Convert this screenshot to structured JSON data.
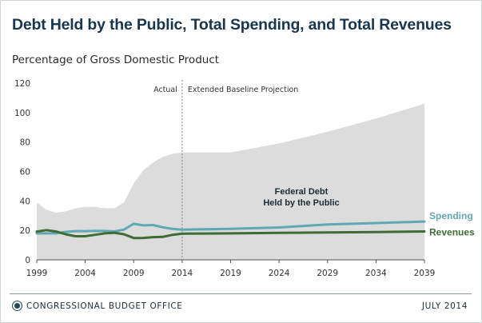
{
  "chart_data": {
    "type": "line",
    "title": "Debt Held by the Public, Total Spending, and Total Revenues",
    "subtitle": "Percentage of Gross Domestic Product",
    "xlim": [
      1999,
      2039
    ],
    "ylim": [
      0,
      120
    ],
    "x_ticks": [
      1999,
      2004,
      2009,
      2014,
      2019,
      2024,
      2029,
      2034,
      2039
    ],
    "y_ticks": [
      0,
      20,
      40,
      60,
      80,
      100,
      120
    ],
    "grid": false,
    "divider": {
      "x": 2014,
      "left_label": "Actual",
      "right_label": "Extended Baseline Projection"
    },
    "area": {
      "name_lines": [
        "Federal Debt",
        "Held by the Public"
      ],
      "color": "#dcdcdc",
      "x": [
        1999,
        2000,
        2001,
        2002,
        2003,
        2004,
        2005,
        2006,
        2007,
        2008,
        2009,
        2010,
        2011,
        2012,
        2013,
        2014,
        2016,
        2019,
        2024,
        2029,
        2034,
        2039
      ],
      "values": [
        39,
        34,
        32,
        33,
        35,
        36,
        36,
        35,
        35,
        39,
        52,
        61,
        66,
        70,
        72,
        73,
        73,
        73,
        79,
        87,
        96,
        106
      ]
    },
    "series": [
      {
        "name": "Spending",
        "color": "#5fa8b4",
        "x": [
          1999,
          2000,
          2001,
          2002,
          2003,
          2004,
          2005,
          2006,
          2007,
          2008,
          2009,
          2010,
          2011,
          2012,
          2013,
          2014,
          2019,
          2024,
          2029,
          2034,
          2039
        ],
        "values": [
          18,
          18,
          18,
          19,
          19.5,
          19.5,
          19.7,
          19.6,
          19.3,
          20.5,
          24.5,
          23.4,
          23.6,
          22.1,
          21,
          20.5,
          21,
          22,
          24,
          25,
          26
        ]
      },
      {
        "name": "Revenues",
        "color": "#3f6b35",
        "x": [
          1999,
          2000,
          2001,
          2002,
          2003,
          2004,
          2005,
          2006,
          2007,
          2008,
          2009,
          2010,
          2011,
          2012,
          2013,
          2014,
          2019,
          2024,
          2029,
          2034,
          2039
        ],
        "values": [
          19.2,
          20.2,
          19.2,
          17.3,
          16,
          16,
          17,
          18,
          18.4,
          17.4,
          14.8,
          14.9,
          15.4,
          15.6,
          17,
          17.8,
          18,
          18.3,
          18.6,
          18.9,
          19.3
        ]
      }
    ]
  },
  "footer": {
    "agency": "CONGRESSIONAL BUDGET OFFICE",
    "date": "JULY 2014"
  }
}
